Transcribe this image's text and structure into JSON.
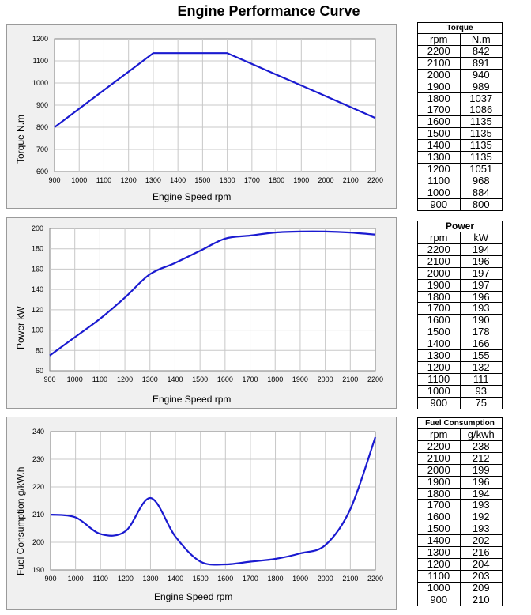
{
  "title": "Engine Performance Curve",
  "chart_data": [
    {
      "type": "line",
      "name": "torque",
      "xlabel": "Engine Speed rpm",
      "ylabel": "Torque N.m",
      "x": [
        900,
        1000,
        1100,
        1200,
        1300,
        1400,
        1500,
        1600,
        1700,
        1800,
        1900,
        2000,
        2100,
        2200
      ],
      "values": [
        800,
        884,
        968,
        1051,
        1135,
        1135,
        1135,
        1135,
        1086,
        1037,
        989,
        940,
        891,
        842
      ],
      "xlim": [
        900,
        2200
      ],
      "ylim": [
        600,
        1200
      ],
      "xticks": [
        "900",
        "1000",
        "1100",
        "1200",
        "1300",
        "1400",
        "1500",
        "1600",
        "1700",
        "1800",
        "1900",
        "2000",
        "2100",
        "2200"
      ],
      "yticks": [
        "600",
        "700",
        "800",
        "900",
        "1000",
        "1100",
        "1200"
      ],
      "yticks_values": [
        600,
        700,
        800,
        900,
        1000,
        1100,
        1200
      ],
      "grid": true,
      "color": "#1a1ad0"
    },
    {
      "type": "line",
      "name": "power",
      "xlabel": "Engine Speed rpm",
      "ylabel": "Power kW",
      "x": [
        900,
        1000,
        1100,
        1200,
        1300,
        1400,
        1500,
        1600,
        1700,
        1800,
        1900,
        2000,
        2100,
        2200
      ],
      "values": [
        75,
        93,
        111,
        132,
        155,
        166,
        178,
        190,
        193,
        196,
        197,
        197,
        196,
        194
      ],
      "xlim": [
        900,
        2200
      ],
      "ylim": [
        60,
        200
      ],
      "xticks": [
        "900",
        "1000",
        "1100",
        "1200",
        "1300",
        "1400",
        "1500",
        "1600",
        "1700",
        "1800",
        "1900",
        "2000",
        "2100",
        "2200"
      ],
      "yticks": [
        "60",
        "80",
        "100",
        "120",
        "140",
        "160",
        "180",
        "200"
      ],
      "yticks_values": [
        60,
        80,
        100,
        120,
        140,
        160,
        180,
        200
      ],
      "grid": true,
      "color": "#1a1ad0"
    },
    {
      "type": "line",
      "name": "fuel",
      "xlabel": "Engine Speed rpm",
      "ylabel": "Fuel Consumption g/kW.h",
      "x": [
        900,
        1000,
        1100,
        1200,
        1300,
        1400,
        1500,
        1600,
        1700,
        1800,
        1900,
        2000,
        2100,
        2200
      ],
      "values": [
        210,
        209,
        203,
        204,
        216,
        202,
        193,
        192,
        193,
        194,
        196,
        199,
        212,
        238
      ],
      "xlim": [
        900,
        2200
      ],
      "ylim": [
        190,
        240
      ],
      "xticks": [
        "900",
        "1000",
        "1100",
        "1200",
        "1300",
        "1400",
        "1500",
        "1600",
        "1700",
        "1800",
        "1900",
        "2000",
        "2100",
        "2200"
      ],
      "yticks": [
        "190",
        "200",
        "210",
        "220",
        "230",
        "240"
      ],
      "yticks_values": [
        190,
        200,
        210,
        220,
        230,
        240
      ],
      "grid": true,
      "color": "#1a1ad0"
    }
  ],
  "tables": {
    "torque": {
      "caption": "Torque",
      "headers": [
        "rpm",
        "N.m"
      ],
      "rows": [
        [
          "2200",
          "842"
        ],
        [
          "2100",
          "891"
        ],
        [
          "2000",
          "940"
        ],
        [
          "1900",
          "989"
        ],
        [
          "1800",
          "1037"
        ],
        [
          "1700",
          "1086"
        ],
        [
          "1600",
          "1135"
        ],
        [
          "1500",
          "1135"
        ],
        [
          "1400",
          "1135"
        ],
        [
          "1300",
          "1135"
        ],
        [
          "1200",
          "1051"
        ],
        [
          "1100",
          "968"
        ],
        [
          "1000",
          "884"
        ],
        [
          "900",
          "800"
        ]
      ]
    },
    "power": {
      "caption": "Power",
      "headers": [
        "rpm",
        "kW"
      ],
      "rows": [
        [
          "2200",
          "194"
        ],
        [
          "2100",
          "196"
        ],
        [
          "2000",
          "197"
        ],
        [
          "1900",
          "197"
        ],
        [
          "1800",
          "196"
        ],
        [
          "1700",
          "193"
        ],
        [
          "1600",
          "190"
        ],
        [
          "1500",
          "178"
        ],
        [
          "1400",
          "166"
        ],
        [
          "1300",
          "155"
        ],
        [
          "1200",
          "132"
        ],
        [
          "1100",
          "111"
        ],
        [
          "1000",
          "93"
        ],
        [
          "900",
          "75"
        ]
      ]
    },
    "fuel": {
      "caption": "Fuel Consumption",
      "headers": [
        "rpm",
        "g/kwh"
      ],
      "rows": [
        [
          "2200",
          "238"
        ],
        [
          "2100",
          "212"
        ],
        [
          "2000",
          "199"
        ],
        [
          "1900",
          "196"
        ],
        [
          "1800",
          "194"
        ],
        [
          "1700",
          "193"
        ],
        [
          "1600",
          "192"
        ],
        [
          "1500",
          "193"
        ],
        [
          "1400",
          "202"
        ],
        [
          "1300",
          "216"
        ],
        [
          "1200",
          "204"
        ],
        [
          "1100",
          "203"
        ],
        [
          "1000",
          "209"
        ],
        [
          "900",
          "210"
        ]
      ]
    }
  }
}
